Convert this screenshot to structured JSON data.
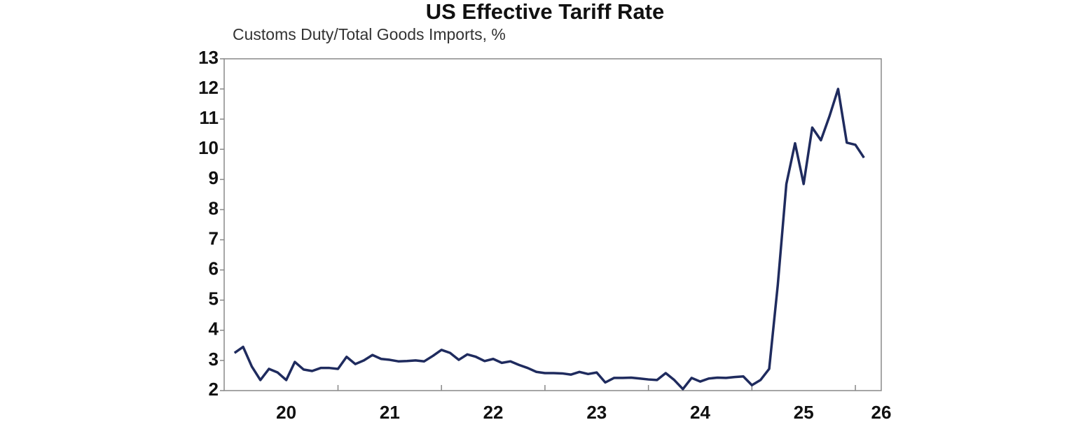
{
  "chart_data": {
    "type": "line",
    "title": "US Effective Tariff Rate",
    "subtitle": "Customs Duty/Total Goods Imports, %",
    "x": [
      20,
      20.083,
      20.167,
      20.25,
      20.333,
      20.417,
      20.5,
      20.583,
      20.667,
      20.75,
      20.833,
      20.917,
      21,
      21.083,
      21.167,
      21.25,
      21.333,
      21.417,
      21.5,
      21.583,
      21.667,
      21.75,
      21.833,
      21.917,
      22,
      22.083,
      22.167,
      22.25,
      22.333,
      22.417,
      22.5,
      22.583,
      22.667,
      22.75,
      22.833,
      22.917,
      23,
      23.083,
      23.167,
      23.25,
      23.333,
      23.417,
      23.5,
      23.583,
      23.667,
      23.75,
      23.833,
      23.917,
      24,
      24.083,
      24.167,
      24.25,
      24.333,
      24.417,
      24.5,
      24.583,
      24.667,
      24.75,
      24.833,
      24.917,
      25,
      25.083,
      25.167,
      25.25,
      25.333,
      25.417,
      25.5,
      25.583,
      25.667,
      25.75,
      25.833,
      25.917,
      26,
      26.083
    ],
    "series": [
      {
        "color": "#1f2b5e",
        "values": [
          3.25,
          3.45,
          2.8,
          2.35,
          2.72,
          2.6,
          2.35,
          2.95,
          2.7,
          2.65,
          2.75,
          2.75,
          2.72,
          3.12,
          2.88,
          3.0,
          3.18,
          3.05,
          3.02,
          2.97,
          2.98,
          3.0,
          2.97,
          3.15,
          3.35,
          3.25,
          3.02,
          3.2,
          3.12,
          2.98,
          3.05,
          2.92,
          2.97,
          2.85,
          2.75,
          2.62,
          2.58,
          2.58,
          2.57,
          2.53,
          2.62,
          2.55,
          2.6,
          2.27,
          2.42,
          2.42,
          2.43,
          2.4,
          2.37,
          2.35,
          2.58,
          2.35,
          2.05,
          2.42,
          2.3,
          2.4,
          2.43,
          2.42,
          2.45,
          2.47,
          2.18,
          2.35,
          2.72,
          5.5,
          8.85,
          10.2,
          8.85,
          10.72,
          10.3,
          11.1,
          12.0,
          10.22,
          10.15,
          9.72
        ]
      }
    ],
    "xlim": [
      19.9,
      26.25
    ],
    "xticks": [
      {
        "value": 20.5,
        "label": "20"
      },
      {
        "value": 21.5,
        "label": "21"
      },
      {
        "value": 22.5,
        "label": "22"
      },
      {
        "value": 23.5,
        "label": "23"
      },
      {
        "value": 24.5,
        "label": "24"
      },
      {
        "value": 25.5,
        "label": "25"
      },
      {
        "value": 26.25,
        "label": "26"
      }
    ],
    "xminorticks": [
      21,
      22,
      23,
      24,
      25,
      26
    ],
    "ylim": [
      2,
      13
    ],
    "yticks": [
      2,
      3,
      4,
      5,
      6,
      7,
      8,
      9,
      10,
      11,
      12,
      13
    ]
  }
}
